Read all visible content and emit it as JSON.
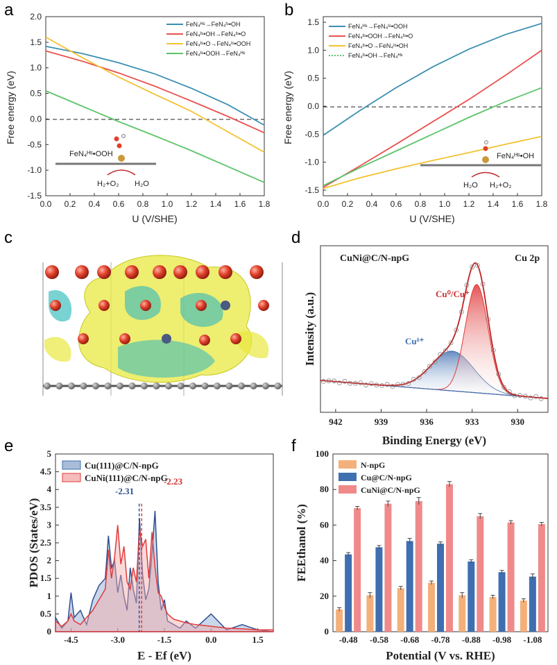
{
  "panels": {
    "a": {
      "letter": "a",
      "ylabel": "Free energy (eV)",
      "xlabel": "U (V/SHE)",
      "legend": [
        "FeN₄ᴴˢ→FeN₄ᴵˢ•OH",
        "FeN₄ᴵˢ•OH→FeN₄ᴵˢ•O",
        "FeN₄ᴵˢ•O→FeN₄ᴵˢ•OOH",
        "FeN₄ᴵˢ•OOH→FeN₄ᴴˢ"
      ],
      "inset_label": "FeN₄ᴴˢ•OOH",
      "inset_left": "H₂+O₂",
      "inset_right": "H₂O"
    },
    "b": {
      "letter": "b",
      "ylabel": "Free energy (eV)",
      "xlabel": "U (V/SHE)",
      "legend": [
        "FeN₄ᴴˢ→FeN₄ᴵˢ•OOH",
        "FeN₄ᴵˢ•OOH→FeN₄ᴵˢ•O",
        "FeN₄ᴵˢ•O→FeN₄ᴵˢ•OH",
        "FeN₄ᴵˢ•OH→FeN₄ᴴˢ"
      ],
      "inset_label": "FeN₄ᴴˢ•OH",
      "inset_left": "H₂O",
      "inset_right": "H₂+O₂"
    },
    "c": {
      "letter": "c"
    },
    "d": {
      "letter": "d",
      "title": "CuNi@C/N-npG",
      "subtitle": "Cu 2p",
      "ylabel": "Intensity (a.u.)",
      "xlabel": "Binding Energy (eV)",
      "peak1": "Cu⁰/Cu⁺",
      "peak2": "Cuᵟ⁺"
    },
    "e": {
      "letter": "e",
      "ylabel": "PDOS (States/eV)",
      "xlabel": "E - Ef (eV)",
      "legend": [
        "Cu(111)@C/N-npG",
        "CuNi(111)@C/N-npG"
      ],
      "center1": "-2.31",
      "center2": "-2.23"
    },
    "f": {
      "letter": "f",
      "ylabel": "FEEthanol (%)",
      "xlabel": "Potential (V vs. RHE)",
      "legend": [
        "N-npG",
        "Cu@C/N-npG",
        "CuNi@C/N-npG"
      ]
    }
  },
  "colors": {
    "blue_line": "#3a8fb0",
    "red_line": "#e8524f",
    "yellow_line": "#f2c230",
    "green_line": "#5cc46a",
    "bar_orange": "#f4b07a",
    "bar_blue": "#3f6fb0",
    "bar_red": "#f08a8a"
  },
  "chart_data": [
    {
      "type": "line",
      "panel": "a",
      "xlim": [
        0,
        1.8
      ],
      "ylim": [
        -1.5,
        2.0
      ],
      "xticks": [
        "0.0",
        "0.2",
        "0.4",
        "0.6",
        "0.8",
        "1.0",
        "1.2",
        "1.4",
        "1.6",
        "1.8"
      ],
      "yticks": [
        "-1.5",
        "-1.0",
        "-0.5",
        "0.0",
        "0.5",
        "1.0",
        "1.5",
        "2.0"
      ],
      "x": [
        0,
        0.3,
        0.6,
        0.9,
        1.2,
        1.5,
        1.8
      ],
      "series": [
        {
          "name": "FeN₄ᴴˢ→FeN₄ᴵˢ•OH",
          "values": [
            1.42,
            1.28,
            1.1,
            0.88,
            0.6,
            0.28,
            -0.12
          ]
        },
        {
          "name": "FeN₄ᴵˢ•OH→FeN₄ᴵˢ•O",
          "values": [
            1.33,
            1.13,
            0.9,
            0.64,
            0.35,
            0.05,
            -0.27
          ]
        },
        {
          "name": "FeN₄ᴵˢ•O→FeN₄ᴵˢ•OOH",
          "values": [
            1.6,
            1.2,
            0.82,
            0.48,
            0.15,
            -0.25,
            -0.65
          ]
        },
        {
          "name": "FeN₄ᴵˢ•OOH→FeN₄ᴴˢ",
          "values": [
            0.55,
            0.25,
            -0.05,
            -0.33,
            -0.62,
            -0.93,
            -1.24
          ]
        }
      ]
    },
    {
      "type": "line",
      "panel": "b",
      "xlim": [
        0,
        1.8
      ],
      "ylim": [
        -1.6,
        1.6
      ],
      "xticks": [
        "0.0",
        "0.2",
        "0.4",
        "0.6",
        "0.8",
        "1.0",
        "1.2",
        "1.4",
        "1.6",
        "1.8"
      ],
      "yticks": [
        "-1.5",
        "-1.0",
        "-0.5",
        "0.0",
        "0.5",
        "1.0",
        "1.5"
      ],
      "x": [
        0,
        0.3,
        0.6,
        0.9,
        1.2,
        1.5,
        1.8
      ],
      "series": [
        {
          "name": "FeN₄ᴴˢ→FeN₄ᴵˢ•OOH",
          "values": [
            -0.52,
            -0.08,
            0.33,
            0.7,
            1.02,
            1.28,
            1.48
          ]
        },
        {
          "name": "FeN₄ᴵˢ•OOH→FeN₄ᴵˢ•O",
          "values": [
            -1.45,
            -1.07,
            -0.68,
            -0.28,
            0.12,
            0.55,
            1.0
          ]
        },
        {
          "name": "FeN₄ᴵˢ•O→FeN₄ᴵˢ•OH",
          "values": [
            -1.47,
            -1.28,
            -1.12,
            -0.97,
            -0.83,
            -0.68,
            -0.54
          ]
        },
        {
          "name": "FeN₄ᴵˢ•OH→FeN₄ᴴˢ",
          "values": [
            -1.42,
            -1.1,
            -0.8,
            -0.5,
            -0.2,
            0.08,
            0.33
          ]
        }
      ]
    },
    {
      "type": "line",
      "panel": "d",
      "xlim": [
        943,
        928
      ],
      "ylim": [
        0,
        100
      ],
      "xticks": [
        "942",
        "939",
        "936",
        "933",
        "930"
      ],
      "peaks": [
        {
          "name": "Cu⁰/Cu⁺",
          "center": 932.7,
          "height": 60
        },
        {
          "name": "Cuᵟ⁺",
          "center": 934.3,
          "height": 22
        }
      ]
    },
    {
      "type": "area",
      "panel": "e",
      "xlim": [
        -5.0,
        2.0
      ],
      "ylim": [
        0,
        5
      ],
      "xticks": [
        "-4.5",
        "-3.0",
        "-1.5",
        "0.0",
        "1.5"
      ],
      "yticks": [
        "0",
        "0.5",
        "1",
        "1.5",
        "2",
        "2.5",
        "3",
        "3.5",
        "4",
        "4.5",
        "5"
      ],
      "x": [
        -5.0,
        -4.8,
        -4.6,
        -4.5,
        -4.4,
        -4.2,
        -4.0,
        -3.8,
        -3.6,
        -3.4,
        -3.3,
        -3.2,
        -3.1,
        -3.0,
        -2.9,
        -2.8,
        -2.7,
        -2.6,
        -2.5,
        -2.4,
        -2.3,
        -2.2,
        -2.1,
        -2.0,
        -1.9,
        -1.8,
        -1.7,
        -1.6,
        -1.5,
        -1.4,
        -1.2,
        -1.0,
        -0.8,
        -0.5,
        0.0,
        0.5,
        1.0,
        1.5,
        2.0
      ],
      "series": [
        {
          "name": "Cu(111)@C/N-npG",
          "values": [
            0.4,
            0.1,
            0.3,
            1.1,
            0.4,
            0.6,
            0.2,
            0.9,
            1.3,
            1.5,
            2.7,
            1.8,
            2.0,
            1.1,
            1.6,
            1.0,
            0.6,
            1.8,
            1.2,
            0.8,
            3.2,
            1.6,
            0.9,
            1.2,
            2.2,
            3.4,
            1.4,
            0.6,
            0.9,
            0.3,
            0.2,
            0.1,
            0.3,
            0.1,
            0.5,
            0.05,
            0.2,
            0.05,
            0.0
          ]
        },
        {
          "name": "CuNi(111)@C/N-npG",
          "values": [
            0.3,
            0.15,
            0.3,
            0.5,
            0.3,
            0.2,
            0.4,
            0.6,
            0.9,
            1.2,
            2.3,
            1.5,
            2.1,
            3.0,
            1.9,
            2.4,
            1.4,
            1.2,
            1.8,
            1.4,
            2.9,
            2.4,
            2.6,
            1.5,
            2.8,
            1.8,
            1.1,
            1.0,
            0.7,
            0.5,
            0.35,
            0.3,
            0.25,
            0.2,
            0.15,
            0.1,
            0.08,
            0.05,
            0.05
          ]
        }
      ],
      "dband_centers": [
        -2.31,
        -2.23
      ]
    },
    {
      "type": "bar",
      "panel": "f",
      "ylim": [
        0,
        100
      ],
      "categories": [
        "-0.48",
        "-0.58",
        "-0.68",
        "-0.78",
        "-0.88",
        "-0.98",
        "-1.08"
      ],
      "yticks": [
        "0",
        "20",
        "40",
        "60",
        "80",
        "100"
      ],
      "series": [
        {
          "name": "N-npG",
          "values": [
            12.5,
            20.5,
            24.5,
            27.5,
            20.5,
            19.5,
            17.5
          ],
          "errors": [
            1,
            1.5,
            1,
            1,
            1.5,
            1,
            1
          ]
        },
        {
          "name": "Cu@C/N-npG",
          "values": [
            43.5,
            47.5,
            51,
            49.5,
            39.5,
            33.5,
            31
          ],
          "errors": [
            1,
            1,
            1.5,
            1,
            1,
            1,
            1.5
          ]
        },
        {
          "name": "CuNi@C/N-npG",
          "values": [
            69.5,
            72,
            73.5,
            83,
            65,
            61.5,
            60.5
          ],
          "errors": [
            1,
            1.5,
            2,
            1.5,
            1.5,
            1,
            1
          ]
        }
      ]
    }
  ]
}
